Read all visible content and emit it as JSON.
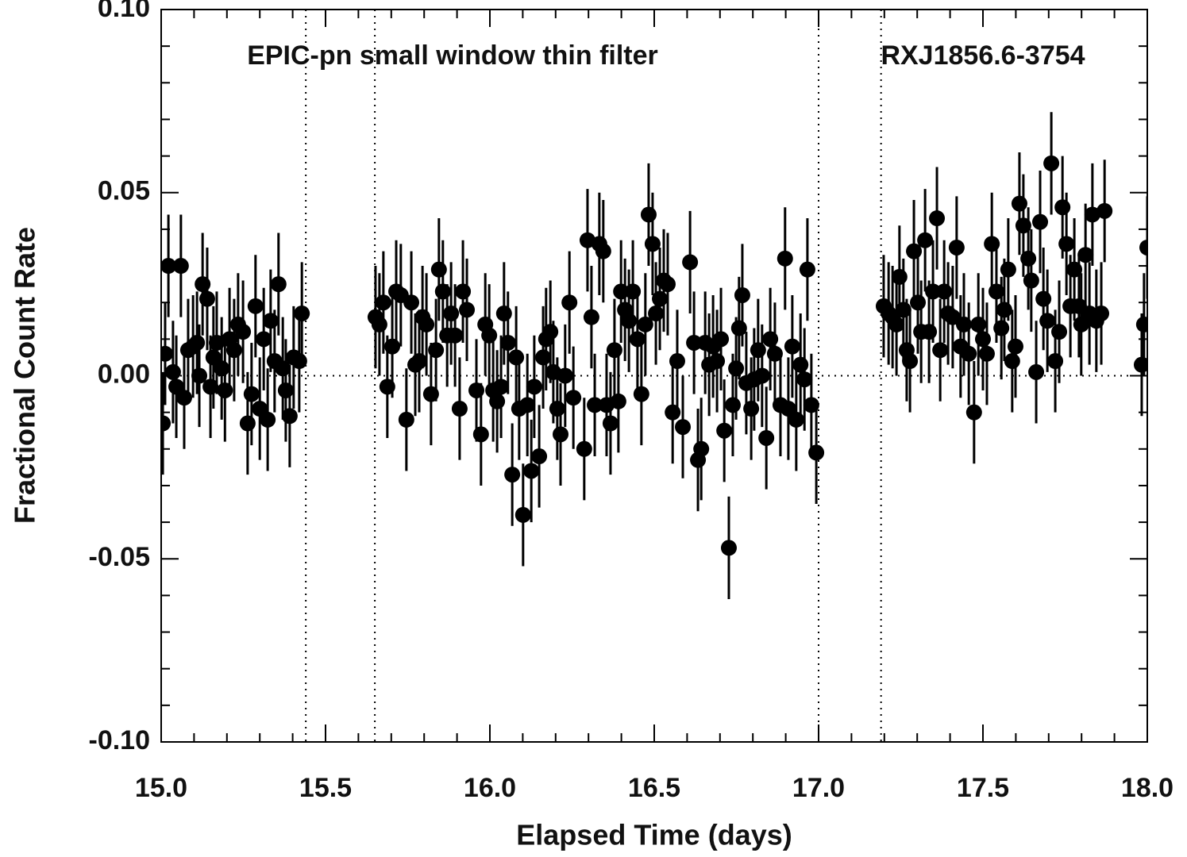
{
  "chart_data": {
    "type": "scatter",
    "xlabel": "Elapsed Time (days)",
    "ylabel": "Fractional Count Rate",
    "annotations": [
      "EPIC-pn small window thin filter",
      "RXJ1856.6-3754"
    ],
    "xlim": [
      15,
      18
    ],
    "ylim": [
      -0.1,
      0.1
    ],
    "xticks": [
      {
        "value": 15,
        "label": "15.0"
      },
      {
        "value": 15.5,
        "label": "15.5"
      },
      {
        "value": 16,
        "label": "16.0"
      },
      {
        "value": 16.5,
        "label": "16.5"
      },
      {
        "value": 17,
        "label": "17.0"
      },
      {
        "value": 17.5,
        "label": "17.5"
      },
      {
        "value": 18,
        "label": "18.0"
      }
    ],
    "yticks": [
      {
        "value": -0.1,
        "label": "-0.10"
      },
      {
        "value": -0.05,
        "label": "-0.05"
      },
      {
        "value": 0,
        "label": "0.00"
      },
      {
        "value": 0.05,
        "label": "0.05"
      },
      {
        "value": 0.1,
        "label": "0.10"
      }
    ],
    "xminorticks": [
      15.1,
      15.2,
      15.3,
      15.4,
      15.6,
      15.7,
      15.8,
      15.9,
      16.1,
      16.2,
      16.3,
      16.4,
      16.6,
      16.7,
      16.8,
      16.9,
      17.1,
      17.2,
      17.3,
      17.4,
      17.6,
      17.7,
      17.8,
      17.9
    ],
    "yminorticks": [
      -0.09,
      -0.08,
      -0.07,
      -0.06,
      -0.04,
      -0.03,
      -0.02,
      -0.01,
      0.01,
      0.02,
      0.03,
      0.04,
      0.06,
      0.07,
      0.08,
      0.09
    ],
    "vlines": [
      15.44,
      15.65,
      17.0,
      17.19
    ],
    "hline": 0,
    "color": "#000000",
    "yerr": 0.014,
    "x": [
      15.005,
      15.012,
      15.022,
      15.036,
      15.046,
      15.06,
      15.07,
      15.082,
      15.097,
      15.109,
      15.116,
      15.126,
      15.14,
      15.15,
      15.159,
      15.169,
      15.184,
      15.194,
      15.208,
      15.222,
      15.234,
      15.249,
      15.263,
      15.275,
      15.287,
      15.3,
      15.312,
      15.324,
      15.333,
      15.345,
      15.357,
      15.37,
      15.379,
      15.391,
      15.403,
      15.42,
      15.428,
      15.652,
      15.664,
      15.676,
      15.688,
      15.703,
      15.715,
      15.729,
      15.746,
      15.761,
      15.773,
      15.785,
      15.795,
      15.807,
      15.821,
      15.836,
      15.845,
      15.857,
      15.87,
      15.882,
      15.894,
      15.908,
      15.918,
      15.93,
      15.959,
      15.973,
      15.986,
      15.998,
      16.01,
      16.022,
      16.034,
      16.043,
      16.055,
      16.068,
      16.08,
      16.089,
      16.101,
      16.114,
      16.126,
      16.135,
      16.15,
      16.162,
      16.171,
      16.184,
      16.193,
      16.205,
      16.215,
      16.229,
      16.242,
      16.254,
      16.287,
      16.297,
      16.309,
      16.319,
      16.333,
      16.345,
      16.355,
      16.367,
      16.379,
      16.391,
      16.399,
      16.411,
      16.423,
      16.435,
      16.449,
      16.461,
      16.473,
      16.483,
      16.495,
      16.505,
      16.517,
      16.529,
      16.541,
      16.556,
      16.57,
      16.587,
      16.609,
      16.621,
      16.633,
      16.643,
      16.655,
      16.667,
      16.679,
      16.691,
      16.703,
      16.713,
      16.727,
      16.739,
      16.749,
      16.758,
      16.768,
      16.78,
      16.795,
      16.804,
      16.816,
      16.828,
      16.841,
      16.853,
      16.867,
      16.884,
      16.898,
      16.908,
      16.92,
      16.932,
      16.945,
      16.957,
      16.966,
      16.978,
      16.993,
      17.198,
      17.213,
      17.225,
      17.237,
      17.246,
      17.258,
      17.268,
      17.278,
      17.29,
      17.302,
      17.312,
      17.324,
      17.336,
      17.348,
      17.36,
      17.37,
      17.382,
      17.394,
      17.408,
      17.42,
      17.432,
      17.442,
      17.457,
      17.473,
      17.486,
      17.5,
      17.512,
      17.527,
      17.541,
      17.556,
      17.565,
      17.577,
      17.589,
      17.599,
      17.611,
      17.623,
      17.638,
      17.647,
      17.662,
      17.674,
      17.684,
      17.696,
      17.708,
      17.72,
      17.732,
      17.742,
      17.754,
      17.766,
      17.778,
      17.792,
      17.799,
      17.812,
      17.824,
      17.833,
      17.845,
      17.86,
      17.87,
      17.983,
      17.99,
      18.0
    ],
    "y": [
      -0.013,
      0.006,
      0.03,
      0.001,
      -0.003,
      0.03,
      -0.006,
      0.007,
      0.008,
      0.009,
      0.0,
      0.025,
      0.021,
      -0.003,
      0.005,
      0.009,
      0.002,
      -0.004,
      0.01,
      0.007,
      0.014,
      0.012,
      -0.013,
      -0.005,
      0.019,
      -0.009,
      0.01,
      -0.012,
      0.015,
      0.004,
      0.025,
      0.002,
      -0.004,
      -0.011,
      0.005,
      0.004,
      0.017,
      0.016,
      0.014,
      0.02,
      -0.003,
      0.008,
      0.023,
      0.022,
      -0.012,
      0.02,
      0.003,
      0.004,
      0.016,
      0.014,
      -0.005,
      0.007,
      0.029,
      0.023,
      0.011,
      0.017,
      0.011,
      -0.009,
      0.023,
      0.018,
      -0.004,
      -0.016,
      0.014,
      0.011,
      -0.004,
      -0.007,
      -0.003,
      0.017,
      0.009,
      -0.027,
      0.005,
      -0.009,
      -0.038,
      -0.008,
      -0.026,
      -0.003,
      -0.022,
      0.005,
      0.01,
      0.012,
      0.001,
      -0.009,
      -0.016,
      0.0,
      0.02,
      -0.006,
      -0.02,
      0.037,
      0.016,
      -0.008,
      0.036,
      0.034,
      -0.008,
      -0.013,
      0.007,
      -0.007,
      0.023,
      0.018,
      0.015,
      0.023,
      0.01,
      -0.005,
      0.014,
      0.044,
      0.036,
      0.017,
      0.021,
      0.026,
      0.025,
      -0.01,
      0.004,
      -0.014,
      0.031,
      0.009,
      -0.023,
      -0.02,
      0.009,
      0.003,
      0.008,
      0.004,
      0.01,
      -0.015,
      -0.047,
      -0.008,
      0.002,
      0.013,
      0.022,
      -0.002,
      -0.009,
      -0.001,
      0.007,
      0.0,
      -0.017,
      0.01,
      0.006,
      -0.008,
      0.032,
      -0.009,
      0.008,
      -0.012,
      0.003,
      -0.001,
      0.029,
      -0.008,
      -0.021,
      0.019,
      0.017,
      0.016,
      0.014,
      0.027,
      0.018,
      0.007,
      0.004,
      0.034,
      0.02,
      0.012,
      0.037,
      0.012,
      0.023,
      0.043,
      0.007,
      0.023,
      0.017,
      0.016,
      0.035,
      0.008,
      0.014,
      0.006,
      -0.01,
      0.014,
      0.01,
      0.006,
      0.036,
      0.023,
      0.013,
      0.018,
      0.029,
      0.004,
      0.008,
      0.047,
      0.041,
      0.032,
      0.026,
      0.001,
      0.042,
      0.021,
      0.015,
      0.058,
      0.004,
      0.012,
      0.046,
      0.036,
      0.019,
      0.029,
      0.019,
      0.014,
      0.033,
      0.017,
      0.044,
      0.015,
      0.017,
      0.045,
      0.003,
      0.014,
      0.035
    ]
  }
}
